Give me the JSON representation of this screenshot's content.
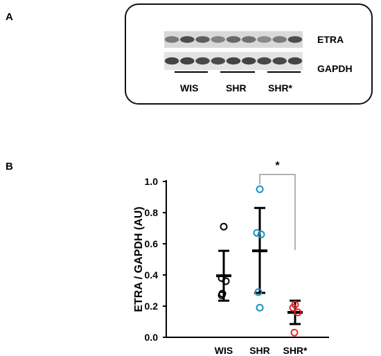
{
  "panel_a_label": "A",
  "panel_b_label": "B",
  "blot": {
    "bands": [
      {
        "label": "ETRA",
        "intensities": [
          0.6,
          0.85,
          0.75,
          0.55,
          0.7,
          0.65,
          0.5,
          0.6,
          0.85
        ]
      },
      {
        "label": "GAPDH",
        "intensities": [
          0.9,
          0.9,
          0.88,
          0.86,
          0.9,
          0.9,
          0.88,
          0.88,
          0.9
        ]
      }
    ],
    "groups": [
      "WIS",
      "SHR",
      "SHR*"
    ]
  },
  "chart_data": {
    "type": "scatter",
    "title": "",
    "xlabel": "",
    "ylabel": "ETRA / GAPDH (AU)",
    "ylim": [
      0.0,
      1.0
    ],
    "yticks": [
      "0.0",
      "0.2",
      "0.4",
      "0.6",
      "0.8",
      "1.0"
    ],
    "categories": [
      "WIS",
      "SHR",
      "SHR*"
    ],
    "colors": {
      "WIS": "#000000",
      "SHR": "#1a8fbf",
      "SHR*": "#e8232a"
    },
    "points": {
      "WIS": [
        0.71,
        0.38,
        0.36,
        0.27,
        0.28
      ],
      "SHR": [
        0.95,
        0.67,
        0.66,
        0.29,
        0.19
      ],
      "SHR*": [
        0.21,
        0.19,
        0.16,
        0.03
      ]
    },
    "mean": {
      "WIS": 0.395,
      "SHR": 0.555,
      "SHR*": 0.16
    },
    "sd_upper": {
      "WIS": 0.555,
      "SHR": 0.83,
      "SHR*": 0.235
    },
    "sd_lower": {
      "WIS": 0.235,
      "SHR": 0.285,
      "SHR*": 0.085
    },
    "significance": {
      "from": "SHR",
      "to": "SHR*",
      "label": "*"
    }
  }
}
